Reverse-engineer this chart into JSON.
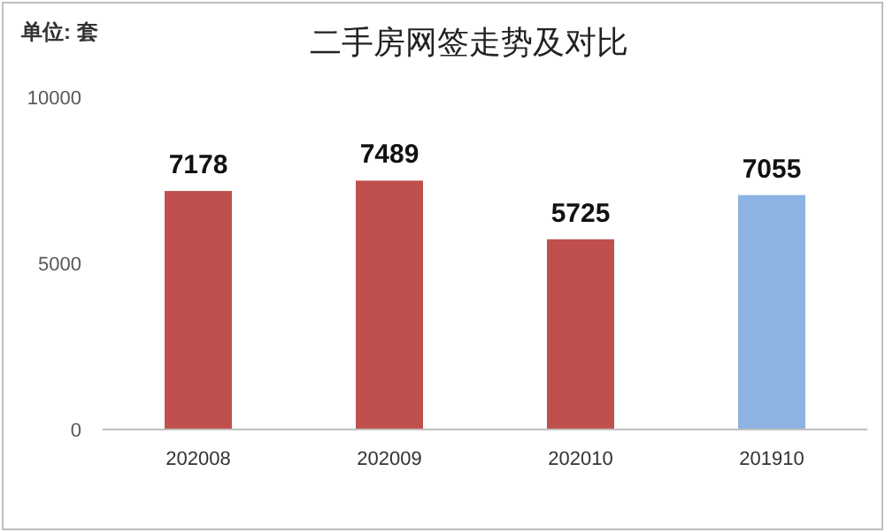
{
  "chart_data": {
    "type": "bar",
    "title": "二手房网签走势及对比",
    "annotations": [
      "单位: 套"
    ],
    "categories": [
      "202008",
      "202009",
      "202010",
      "201910"
    ],
    "values": [
      7178,
      7489,
      5725,
      7055
    ],
    "colors": [
      "#c0504d",
      "#c0504d",
      "#c0504d",
      "#8db3e2"
    ],
    "ylim": [
      0,
      10000
    ],
    "yticks": [
      0,
      5000,
      10000
    ],
    "data_labels": true
  }
}
